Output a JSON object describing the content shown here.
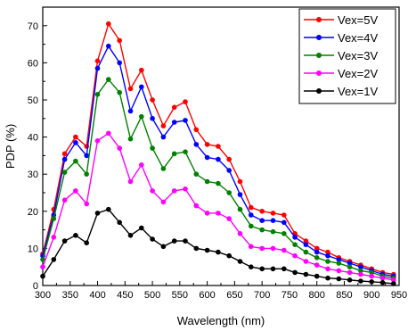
{
  "chart_data": {
    "type": "line",
    "xlabel": "Wavelength (nm)",
    "ylabel": "PDP (%)",
    "xlim": [
      300,
      950
    ],
    "ylim": [
      0,
      75
    ],
    "x_ticks": [
      300,
      350,
      400,
      450,
      500,
      550,
      600,
      650,
      700,
      750,
      800,
      850,
      900,
      950
    ],
    "y_ticks": [
      0,
      10,
      20,
      30,
      40,
      50,
      60,
      70
    ],
    "grid": false,
    "legend_position": "top-right",
    "x": [
      300,
      320,
      340,
      360,
      380,
      400,
      420,
      440,
      460,
      480,
      500,
      520,
      540,
      560,
      580,
      600,
      620,
      640,
      660,
      680,
      700,
      720,
      740,
      760,
      780,
      800,
      820,
      840,
      860,
      880,
      900,
      920,
      940
    ],
    "series": [
      {
        "name": "Vex=5V",
        "color": "#ff0000",
        "values": [
          8.5,
          20.5,
          35.5,
          40,
          37.5,
          60.5,
          70.5,
          66,
          53,
          58,
          50,
          43,
          48,
          49.5,
          42,
          38,
          37.5,
          34,
          28,
          21,
          20,
          19.5,
          19,
          14,
          12,
          10,
          9,
          7.5,
          6.5,
          5.5,
          4.5,
          3.5,
          3
        ]
      },
      {
        "name": "Vex=4V",
        "color": "#0000ff",
        "values": [
          8,
          19,
          34,
          38.5,
          35,
          58.5,
          64.5,
          60,
          47,
          53.5,
          45,
          40,
          44,
          44.5,
          38,
          34.5,
          34,
          31,
          24.5,
          19,
          17.5,
          17.5,
          17,
          13,
          11,
          9,
          8,
          7,
          6,
          5,
          4,
          3,
          2.5
        ]
      },
      {
        "name": "Vex=3V",
        "color": "#008000",
        "values": [
          7,
          18,
          30.5,
          33.5,
          30,
          51.5,
          55.5,
          52,
          39.5,
          45.5,
          37,
          31.5,
          35.5,
          36,
          30,
          28,
          27.5,
          25,
          20.5,
          16,
          15,
          14.5,
          14,
          11,
          9,
          7.5,
          6.5,
          6,
          5,
          4,
          3.5,
          2.5,
          2
        ]
      },
      {
        "name": "Vex=2V",
        "color": "#ff00ff",
        "values": [
          5,
          13,
          23,
          25.5,
          22,
          39,
          41,
          37,
          28,
          32.5,
          25.5,
          22.5,
          25.5,
          26,
          21.5,
          19.5,
          19.5,
          18,
          14,
          10.5,
          10,
          10,
          9.5,
          8,
          6.5,
          5.5,
          4.5,
          4,
          3.5,
          3,
          2.5,
          2,
          1.5
        ]
      },
      {
        "name": "Vex=1V",
        "color": "#000000",
        "values": [
          2.5,
          7,
          12,
          13.5,
          11.5,
          19.5,
          20.5,
          17,
          13.5,
          15.5,
          12.5,
          10.5,
          12,
          12,
          10,
          9.5,
          9,
          8,
          6.5,
          5,
          4.5,
          4.5,
          4.5,
          3.5,
          3,
          2.5,
          2,
          1.8,
          1.5,
          1.2,
          1,
          0.8,
          0.5
        ]
      }
    ]
  }
}
